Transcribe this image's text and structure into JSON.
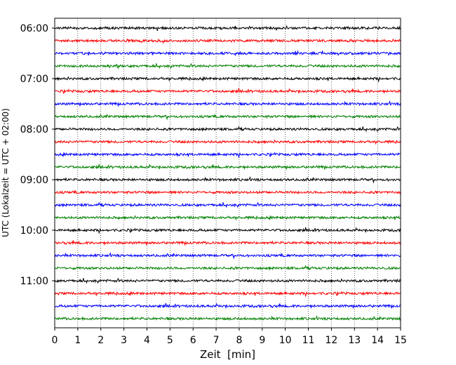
{
  "chart_data": {
    "type": "line",
    "title": "",
    "xlabel": "Zeit  [min]",
    "ylabel": "UTC (Lokalzeit = UTC + 02:00)",
    "xlim": [
      0,
      15
    ],
    "x_ticks": [
      "0",
      "1",
      "2",
      "3",
      "4",
      "5",
      "6",
      "7",
      "8",
      "9",
      "10",
      "11",
      "12",
      "13",
      "14",
      "15"
    ],
    "y_ticks": [
      "06:00",
      "07:00",
      "08:00",
      "09:00",
      "10:00",
      "11:00"
    ],
    "trace_start_times": [
      "06:00",
      "06:15",
      "06:30",
      "06:45",
      "07:00",
      "07:15",
      "07:30",
      "07:45",
      "08:00",
      "08:15",
      "08:30",
      "08:45",
      "09:00",
      "09:15",
      "09:30",
      "09:45",
      "10:00",
      "10:15",
      "10:30",
      "10:45",
      "11:00",
      "11:15",
      "11:30",
      "11:45"
    ],
    "trace_colors": [
      "#000000",
      "#ff0000",
      "#0000ff",
      "#008000"
    ],
    "grid": "vertical-dotted",
    "legend": "none"
  }
}
